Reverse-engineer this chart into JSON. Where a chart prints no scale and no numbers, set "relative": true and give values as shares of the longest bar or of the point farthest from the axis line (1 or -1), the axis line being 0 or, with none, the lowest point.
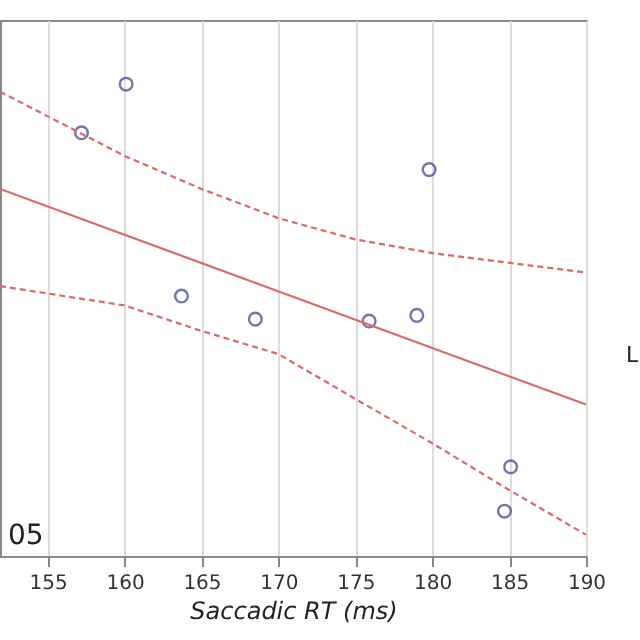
{
  "chart_data": {
    "type": "scatter",
    "relative": true,
    "xlabel": "Saccadic RT (ms)",
    "xlim": [
      151.9,
      190
    ],
    "xticks": [
      155,
      160,
      165,
      170,
      175,
      180,
      185,
      190
    ],
    "grid": "x",
    "marker": "circle",
    "series": [
      {
        "color": "#3a3a8c",
        "x": [
          157.2,
          160.1,
          163.7,
          168.5,
          175.9,
          179.0,
          179.8,
          185.1,
          184.7
        ],
        "values": [
          0.897,
          1,
          0.551,
          0.502,
          0.498,
          0.51,
          0.819,
          0.189,
          0.095
        ]
      },
      {
        "type": "line",
        "color": "#e06666",
        "line_style": "solid",
        "marker": "none",
        "x": [
          151.9,
          190
        ],
        "values": [
          0.778,
          0.321
        ]
      },
      {
        "type": "line",
        "color": "#e06666",
        "line_style": "dashed",
        "marker": "none",
        "x": [
          151.9,
          160,
          165,
          170,
          175,
          180,
          190
        ],
        "values": [
          0.984,
          0.848,
          0.778,
          0.716,
          0.671,
          0.642,
          0.601
        ]
      },
      {
        "type": "line",
        "color": "#e06666",
        "line_style": "dashed",
        "marker": "none",
        "x": [
          151.9,
          160,
          165,
          170,
          175,
          180,
          185,
          190
        ],
        "values": [
          0.572,
          0.531,
          0.477,
          0.428,
          0.333,
          0.239,
          0.14,
          0.045
        ]
      }
    ],
    "annotations": [
      "05",
      "L"
    ]
  }
}
